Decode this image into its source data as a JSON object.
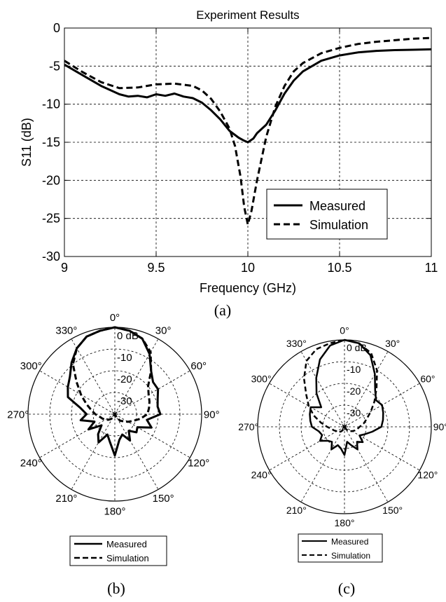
{
  "panel_labels": [
    "(a)",
    "(b)",
    "(c)"
  ],
  "chart_data": [
    {
      "type": "line",
      "title": "Experiment Results",
      "xlabel": "Frequency (GHz)",
      "ylabel": "S11 (dB)",
      "xlim": [
        9,
        11
      ],
      "ylim": [
        -30,
        0
      ],
      "xticks": [
        9,
        9.5,
        10,
        10.5,
        11
      ],
      "yticks": [
        0,
        -5,
        -10,
        -15,
        -20,
        -25,
        -30
      ],
      "grid": true,
      "legend": "bottom-right",
      "series": [
        {
          "name": "Measured",
          "style": "solid",
          "x": [
            9.0,
            9.1,
            9.2,
            9.3,
            9.35,
            9.4,
            9.45,
            9.5,
            9.55,
            9.6,
            9.65,
            9.7,
            9.75,
            9.8,
            9.85,
            9.9,
            9.95,
            9.98,
            10.0,
            10.03,
            10.05,
            10.1,
            10.15,
            10.2,
            10.25,
            10.3,
            10.4,
            10.5,
            10.6,
            10.7,
            10.8,
            10.9,
            11.0
          ],
          "y": [
            -4.8,
            -6.2,
            -7.6,
            -8.7,
            -9.0,
            -8.9,
            -9.1,
            -8.7,
            -8.9,
            -8.6,
            -9.0,
            -9.2,
            -9.8,
            -10.8,
            -12.0,
            -13.5,
            -14.4,
            -14.8,
            -15.0,
            -14.5,
            -13.8,
            -12.7,
            -10.8,
            -8.6,
            -6.9,
            -5.7,
            -4.3,
            -3.6,
            -3.2,
            -3.0,
            -2.9,
            -2.85,
            -2.8
          ]
        },
        {
          "name": "Simulation",
          "style": "dashed",
          "x": [
            9.0,
            9.1,
            9.2,
            9.3,
            9.4,
            9.5,
            9.6,
            9.7,
            9.75,
            9.8,
            9.85,
            9.9,
            9.93,
            9.96,
            9.98,
            10.0,
            10.02,
            10.05,
            10.1,
            10.15,
            10.2,
            10.25,
            10.3,
            10.4,
            10.5,
            10.6,
            10.7,
            10.8,
            10.9,
            11.0
          ],
          "y": [
            -4.3,
            -5.8,
            -7.1,
            -7.9,
            -7.8,
            -7.4,
            -7.3,
            -7.6,
            -8.2,
            -9.3,
            -11.0,
            -13.2,
            -15.5,
            -19.5,
            -23.5,
            -25.8,
            -24.0,
            -20.0,
            -14.3,
            -10.3,
            -7.6,
            -5.7,
            -4.6,
            -3.3,
            -2.6,
            -2.1,
            -1.8,
            -1.6,
            -1.4,
            -1.3
          ]
        }
      ]
    },
    {
      "type": "polar",
      "angle_ticks": [
        "0°",
        "30°",
        "60°",
        "90°",
        "120°",
        "150°",
        "180°",
        "210°",
        "240°",
        "270°",
        "300°",
        "330°"
      ],
      "radial_ticks": [
        "0 dB",
        "-10",
        "-20",
        "-30"
      ],
      "r_range": [
        -40,
        0
      ],
      "legend": "bottom",
      "series": [
        {
          "name": "Measured",
          "style": "solid",
          "angle_deg": [
            0,
            10,
            20,
            30,
            40,
            50,
            60,
            70,
            80,
            90,
            100,
            110,
            120,
            130,
            140,
            150,
            160,
            170,
            180,
            190,
            200,
            210,
            220,
            230,
            240,
            250,
            260,
            270,
            280,
            290,
            300,
            310,
            320,
            330,
            340,
            350
          ],
          "gain_db": [
            0,
            -1,
            -3,
            -8,
            -14,
            -17,
            -17,
            -19,
            -20,
            -19,
            -25,
            -22,
            -28,
            -27,
            -30,
            -26,
            -30,
            -28,
            -21,
            -27,
            -30,
            -25,
            -28,
            -32,
            -26,
            -30,
            -24,
            -27,
            -24,
            -17,
            -15,
            -13,
            -9,
            -5,
            -2,
            -1
          ]
        },
        {
          "name": "Simulation",
          "style": "dashed",
          "angle_deg": [
            0,
            10,
            20,
            30,
            40,
            50,
            60,
            70,
            80,
            90,
            100,
            110,
            120,
            130,
            140,
            150,
            160,
            170,
            180,
            190,
            200,
            210,
            220,
            230,
            240,
            250,
            260,
            270,
            280,
            290,
            300,
            310,
            320,
            330,
            340,
            350
          ],
          "gain_db": [
            0,
            -1,
            -3,
            -7,
            -14,
            -20,
            -22,
            -23,
            -24,
            -25,
            -28,
            -31,
            -33,
            -35,
            -36,
            -38,
            -39,
            -40,
            -40,
            -40,
            -39,
            -38,
            -37,
            -36,
            -35,
            -34,
            -33,
            -31,
            -29,
            -26,
            -22,
            -17,
            -10,
            -5,
            -2,
            -1
          ]
        }
      ]
    },
    {
      "type": "polar",
      "angle_ticks": [
        "0°",
        "30°",
        "60°",
        "90°",
        "120°",
        "150°",
        "180°",
        "210°",
        "240°",
        "270°",
        "300°",
        "330°"
      ],
      "radial_ticks": [
        "0 dB",
        "-10",
        "-20",
        "-30"
      ],
      "r_range": [
        -40,
        0
      ],
      "legend": "bottom",
      "series": [
        {
          "name": "Measured",
          "style": "solid",
          "angle_deg": [
            0,
            10,
            20,
            30,
            40,
            50,
            60,
            70,
            80,
            90,
            100,
            110,
            120,
            130,
            140,
            150,
            160,
            170,
            180,
            190,
            200,
            210,
            220,
            230,
            240,
            250,
            260,
            270,
            280,
            290,
            300,
            310,
            320,
            330,
            340,
            350
          ],
          "gain_db": [
            0,
            -1,
            -5,
            -12,
            -18,
            -21,
            -20,
            -21,
            -22,
            -23,
            -27,
            -30,
            -32,
            -29,
            -31,
            -28,
            -31,
            -33,
            -27,
            -30,
            -31,
            -28,
            -31,
            -30,
            -27,
            -29,
            -28,
            -25,
            -24,
            -23,
            -22,
            -26,
            -20,
            -14,
            -7,
            -2
          ]
        },
        {
          "name": "Simulation",
          "style": "dashed",
          "angle_deg": [
            0,
            10,
            20,
            30,
            40,
            50,
            60,
            70,
            80,
            90,
            100,
            110,
            120,
            130,
            140,
            150,
            160,
            170,
            180,
            190,
            200,
            210,
            220,
            230,
            240,
            250,
            260,
            270,
            280,
            290,
            300,
            310,
            320,
            330,
            340,
            350
          ],
          "gain_db": [
            0,
            -1,
            -4,
            -10,
            -17,
            -22,
            -26,
            -29,
            -31,
            -33,
            -34,
            -35,
            -36,
            -37,
            -38,
            -39,
            -40,
            -40,
            -40,
            -40,
            -39,
            -38,
            -37,
            -37,
            -36,
            -35,
            -34,
            -32,
            -29,
            -25,
            -21,
            -17,
            -11,
            -5,
            -2,
            -1
          ]
        }
      ]
    }
  ]
}
